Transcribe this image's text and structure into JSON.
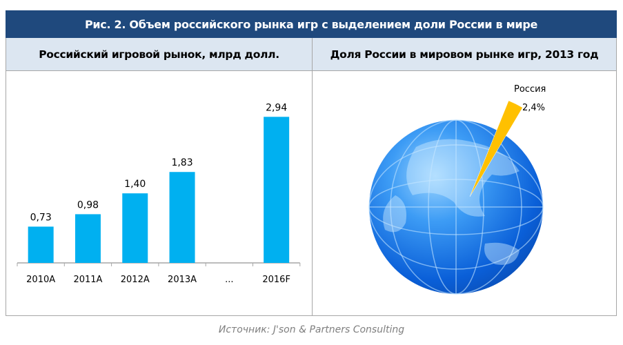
{
  "title": "Рис. 2. Объем российского рынка игр с выделением доли России в мире",
  "left_header": "Российский игровой рынок, млрд долл.",
  "right_header": "Доля России в мировом рынке игр, 2013 год",
  "source": "Источник: J'son & Partners Consulting",
  "colors": {
    "title_bg": "#1f497d",
    "header_bg": "#dce6f1",
    "bar": "#00b0f0",
    "globe": "#1e7fe8",
    "wedge": "#ffc000"
  },
  "chart_data": [
    {
      "type": "bar",
      "categories": [
        "2010A",
        "2011A",
        "2012A",
        "2013A",
        "...",
        "2016F"
      ],
      "values": [
        0.73,
        0.98,
        1.4,
        1.83,
        null,
        2.94
      ],
      "labels": [
        "0,73",
        "0,98",
        "1,40",
        "1,83",
        "",
        "2,94"
      ],
      "ylim": [
        0,
        3.2
      ],
      "grid": false
    },
    {
      "type": "pie",
      "title": "",
      "slices": [
        {
          "name": "Россия",
          "value": 2.4,
          "label": "2,4%"
        }
      ],
      "decoration": "globe"
    }
  ]
}
